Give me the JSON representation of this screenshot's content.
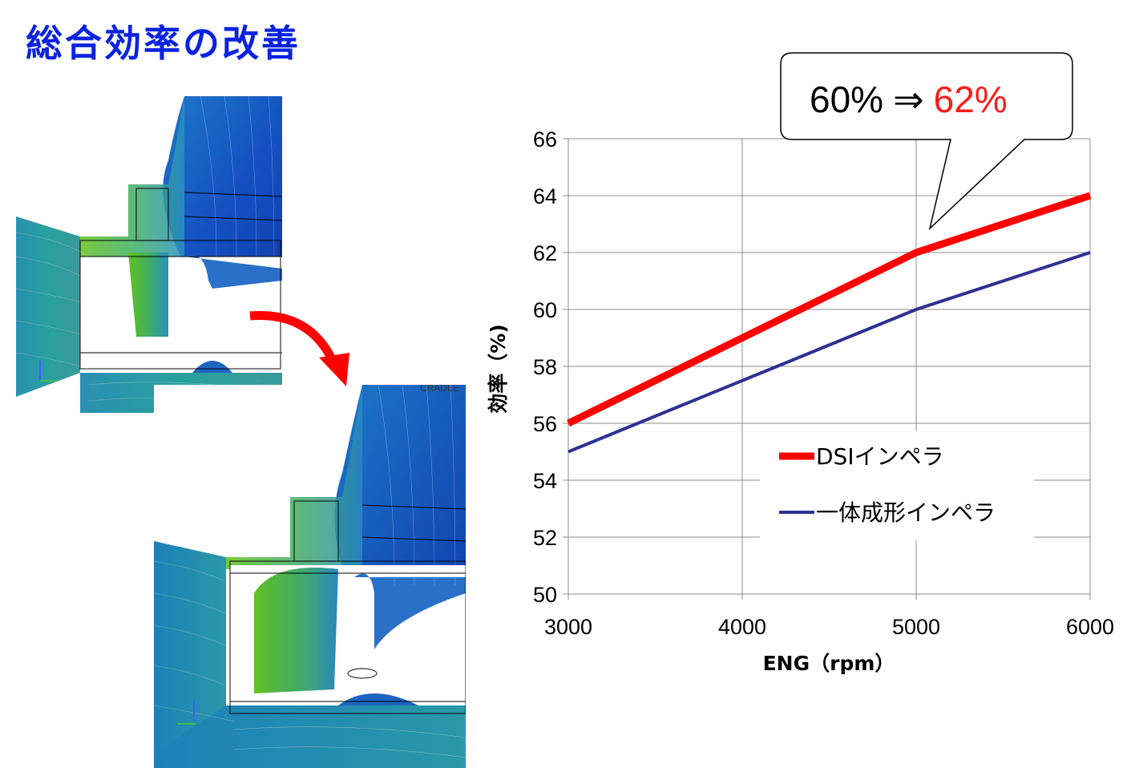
{
  "title": "総合効率の改善",
  "sim_labels": {
    "after_tag": "CRADLE"
  },
  "callout": {
    "before": "60%",
    "arrow": "⇒",
    "after": "62%",
    "after_color": "#ff1a1a"
  },
  "chart_data": {
    "type": "line",
    "x": [
      3000,
      4000,
      5000,
      6000
    ],
    "xlim": [
      3000,
      6000
    ],
    "ylim": [
      50,
      66
    ],
    "xticks": [
      3000,
      4000,
      5000,
      6000
    ],
    "yticks": [
      50,
      52,
      54,
      56,
      58,
      60,
      62,
      64,
      66
    ],
    "xlabel": "ENG（rpm）",
    "ylabel": "効率（%)",
    "grid": true,
    "legend_position": "lower-right",
    "series": [
      {
        "name": "DSIインペラ",
        "values": [
          56,
          59,
          62,
          64
        ],
        "color": "#ff0000",
        "width": 9
      },
      {
        "name": "一体成形インペラ",
        "values": [
          55,
          57.5,
          60,
          62
        ],
        "color": "#2e3192",
        "width": 4
      }
    ]
  }
}
